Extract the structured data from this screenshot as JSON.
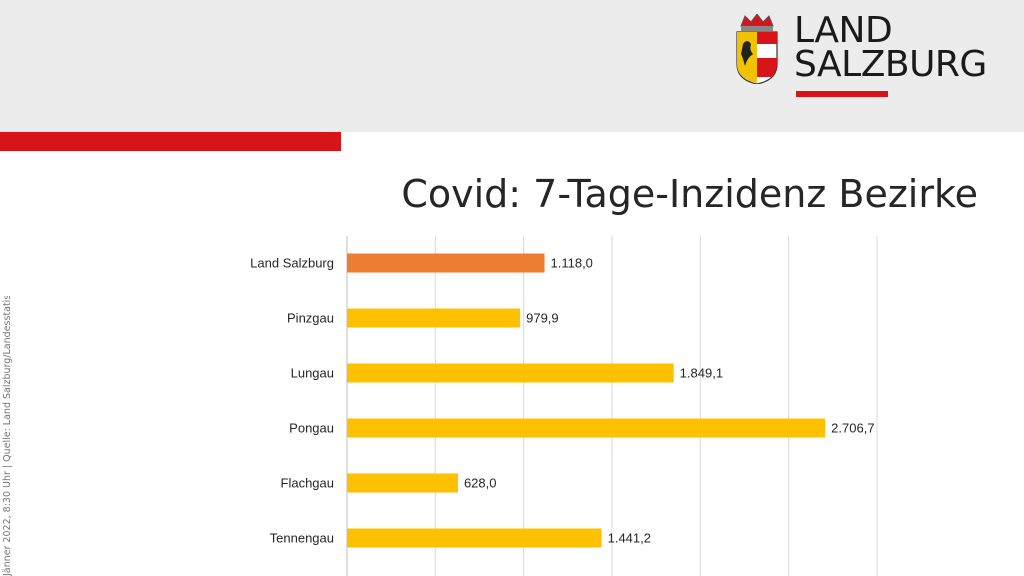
{
  "header": {
    "logo": {
      "line1": "LAND",
      "line2": "SALZBURG",
      "crest_icon": "salzburg-coat-of-arms"
    }
  },
  "side_note": "Jänner 2022, 8:30 Uhr | Quelle: Land Salzburg/Landesstatistik",
  "colors": {
    "brand_red": "#d7141a",
    "bar_highlight": "#ed7d31",
    "bar_default": "#ffc000"
  },
  "chart_data": {
    "type": "bar",
    "orientation": "horizontal",
    "title": "Covid: 7-Tage-Inzidenz Bezirke",
    "categories": [
      "Land Salzburg",
      "Pinzgau",
      "Lungau",
      "Pongau",
      "Flachgau",
      "Tennengau"
    ],
    "values": [
      1118.0,
      979.9,
      1849.1,
      2706.7,
      628.0,
      1441.2
    ],
    "value_labels": [
      "1.118,0",
      "979,9",
      "1.849,1",
      "2.706,7",
      "628,0",
      "1.441,2"
    ],
    "highlight_index": 0,
    "xlim": [
      0,
      3000
    ],
    "grid": true
  }
}
